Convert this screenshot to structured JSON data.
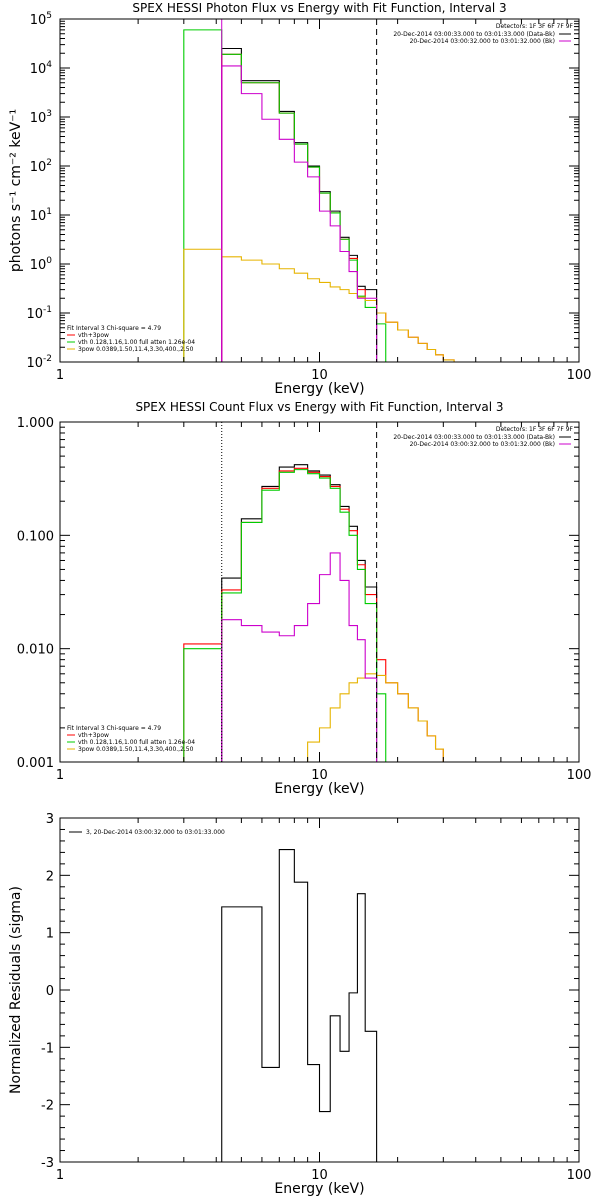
{
  "chart_data": [
    {
      "type": "line",
      "title": "SPEX HESSI Photon Flux vs Energy with Fit Function, Interval 3",
      "xlabel": "Energy (keV)",
      "ylabel": "photons s⁻¹ cm⁻² keV⁻¹",
      "xscale": "log",
      "yscale": "log",
      "xlim": [
        1,
        100
      ],
      "ylim": [
        0.01,
        100000
      ],
      "x_ticks": [
        "1",
        "10",
        "100"
      ],
      "y_ticks": [
        {
          "base": "10",
          "exp": "5"
        },
        {
          "base": "10",
          "exp": "4"
        },
        {
          "base": "10",
          "exp": "3"
        },
        {
          "base": "10",
          "exp": "2"
        },
        {
          "base": "10",
          "exp": "1"
        },
        {
          "base": "10",
          "exp": "0"
        },
        {
          "base": "10",
          "exp": "-1"
        },
        {
          "base": "10",
          "exp": "-2"
        }
      ],
      "detectors": "Detectors: 1F 3F 6F 7F 9F",
      "time_legend": [
        {
          "text": "20-Dec-2014 03:00:33.000 to 03:01:33.000 (Data-Bk)",
          "color": "#000000"
        },
        {
          "text": "20-Dec-2014 03:00:32.000 to 03:01:32.000 (Bk)",
          "color": "#cc00cc"
        }
      ],
      "fit_legend": [
        {
          "text": "Fit Interval 3   Chi-square = 4.79",
          "color": "#000000"
        },
        {
          "text": "vth+3pow",
          "color": "#ff0000"
        },
        {
          "text": "vth 0.128,1.16,1.00  full atten 1.26e-04",
          "color": "#00cc00"
        },
        {
          "text": "3pow 0.0389,1.50,11.4,3.30,400.,2.50",
          "color": "#e6b400"
        }
      ],
      "vlines": [
        {
          "x": 4.2,
          "style": "solid",
          "color": "#cc00cc"
        },
        {
          "x": 16.6,
          "style": "dashed",
          "color": "#000000"
        }
      ],
      "bin_edges": [
        3.0,
        4.2,
        5.0,
        6.0,
        7.0,
        8.0,
        9.0,
        10.0,
        11.0,
        12.0,
        13.0,
        14.0,
        15.0,
        16.6,
        18.0,
        20.0,
        22.0,
        24.0,
        26.0,
        28.0,
        30.0,
        33.0,
        36.0
      ],
      "series": [
        {
          "name": "",
          "color": "#000000",
          "values": [
            null,
            25000,
            5500,
            5500,
            1300,
            300,
            100,
            30,
            12,
            3.5,
            1.5,
            0.35,
            0.3,
            null,
            null,
            null,
            null,
            null,
            null,
            null,
            null,
            null
          ]
        },
        {
          "name": "",
          "color": "#ff0000",
          "values": [
            null,
            19000,
            5000,
            5000,
            1200,
            280,
            95,
            28,
            11,
            3.2,
            1.3,
            0.3,
            0.18,
            0.1,
            0.065,
            0.045,
            0.032,
            0.024,
            0.018,
            0.014,
            0.011,
            null
          ]
        },
        {
          "name": "",
          "color": "#00cc00",
          "values": [
            60000,
            19000,
            5000,
            5000,
            1200,
            280,
            95,
            28,
            11,
            3.2,
            1.2,
            0.22,
            0.13,
            0.06,
            null,
            null,
            null,
            null,
            null,
            null,
            null,
            null
          ]
        },
        {
          "name": "",
          "color": "#e6b400",
          "values": [
            2.0,
            1.4,
            1.2,
            1.0,
            0.8,
            0.65,
            0.5,
            0.42,
            0.34,
            0.3,
            0.25,
            0.21,
            0.18,
            0.1,
            0.065,
            0.045,
            0.032,
            0.024,
            0.018,
            0.014,
            0.011,
            null
          ]
        },
        {
          "name": "",
          "color": "#cc00cc",
          "values": [
            null,
            11000,
            3000,
            900,
            350,
            120,
            60,
            12,
            6,
            1.8,
            0.7,
            0.2,
            0.2,
            null,
            null,
            null,
            null,
            null,
            null,
            null,
            null,
            null
          ]
        }
      ]
    },
    {
      "type": "line",
      "title": "SPEX HESSI Count Flux vs Energy with Fit Function, Interval 3",
      "xlabel": "Energy (keV)",
      "ylabel": "",
      "xscale": "log",
      "yscale": "log",
      "xlim": [
        1,
        100
      ],
      "ylim": [
        0.001,
        1.0
      ],
      "x_ticks": [
        "1",
        "10",
        "100"
      ],
      "y_ticks": [
        "1.000",
        "0.100",
        "0.010",
        "0.001"
      ],
      "detectors": "Detectors: 1F 3F 6F 7F 9F",
      "time_legend": [
        {
          "text": "20-Dec-2014 03:00:33.000 to 03:01:33.000 (Data-Bk)",
          "color": "#000000"
        },
        {
          "text": "20-Dec-2014 03:00:32.000 to 03:01:32.000 (Bk)",
          "color": "#cc00cc"
        }
      ],
      "fit_legend": [
        {
          "text": "Fit Interval 3   Chi-square = 4.79",
          "color": "#000000"
        },
        {
          "text": "vth+3pow",
          "color": "#ff0000"
        },
        {
          "text": "vth 0.128,1.16,1.00  full atten 1.26e-04",
          "color": "#00cc00"
        },
        {
          "text": "3pow 0.0389,1.50,11.4,3.30,400.,2.50",
          "color": "#e6b400"
        }
      ],
      "vlines": [
        {
          "x": 4.2,
          "style": "dotted",
          "color": "#000000"
        },
        {
          "x": 16.6,
          "style": "dashed",
          "color": "#000000"
        }
      ],
      "bin_edges": [
        3.0,
        4.2,
        5.0,
        6.0,
        7.0,
        8.0,
        9.0,
        10.0,
        11.0,
        12.0,
        13.0,
        14.0,
        15.0,
        16.6,
        18.0,
        20.0,
        22.0,
        24.0,
        26.0,
        28.0,
        30.0,
        33.0,
        36.0
      ],
      "series": [
        {
          "name": "",
          "color": "#000000",
          "values": [
            null,
            0.042,
            0.14,
            0.27,
            0.4,
            0.42,
            0.37,
            0.34,
            0.28,
            0.18,
            0.12,
            0.06,
            0.035,
            null,
            null,
            null,
            null,
            null,
            null,
            null,
            null,
            null
          ]
        },
        {
          "name": "",
          "color": "#ff0000",
          "values": [
            0.011,
            0.033,
            0.13,
            0.26,
            0.37,
            0.39,
            0.36,
            0.33,
            0.27,
            0.17,
            0.11,
            0.055,
            0.03,
            0.008,
            0.005,
            0.004,
            0.003,
            0.0023,
            0.0017,
            0.0013,
            0.001,
            null
          ]
        },
        {
          "name": "",
          "color": "#00cc00",
          "values": [
            0.01,
            0.031,
            0.13,
            0.25,
            0.36,
            0.38,
            0.35,
            0.32,
            0.26,
            0.16,
            0.1,
            0.05,
            0.025,
            0.004,
            null,
            null,
            null,
            null,
            null,
            null,
            null,
            null
          ]
        },
        {
          "name": "",
          "color": "#e6b400",
          "values": [
            null,
            null,
            null,
            null,
            null,
            0.001,
            0.0015,
            0.002,
            0.003,
            0.004,
            0.005,
            0.0055,
            0.006,
            0.0058,
            0.005,
            0.004,
            0.003,
            0.0023,
            0.0017,
            0.0013,
            0.001,
            null
          ]
        },
        {
          "name": "",
          "color": "#cc00cc",
          "values": [
            null,
            0.018,
            0.016,
            0.014,
            0.013,
            0.016,
            0.025,
            0.045,
            0.07,
            0.04,
            0.016,
            0.012,
            0.0055,
            null,
            null,
            null,
            null,
            null,
            null,
            null,
            null,
            null
          ]
        }
      ]
    },
    {
      "type": "line",
      "title": "",
      "xlabel": "Energy (keV)",
      "ylabel": "Normalized Residuals (sigma)",
      "xscale": "log",
      "yscale": "linear",
      "xlim": [
        1,
        100
      ],
      "ylim": [
        -3,
        3
      ],
      "x_ticks": [
        "1",
        "10",
        "100"
      ],
      "y_ticks": [
        "3",
        "2",
        "1",
        "0",
        "-1",
        "-2",
        "-3"
      ],
      "legend_label": "3, 20-Dec-2014 03:00:32.000 to 03:01:33.000",
      "bin_edges": [
        4.2,
        5.0,
        6.0,
        7.0,
        8.0,
        9.0,
        10.0,
        11.0,
        12.0,
        13.0,
        14.0,
        15.0,
        16.6
      ],
      "series": [
        {
          "name": "",
          "color": "#000000",
          "values": [
            1.45,
            1.45,
            -1.35,
            2.45,
            1.88,
            -1.3,
            -2.12,
            -0.45,
            -1.07,
            -0.05,
            1.68,
            -0.72
          ]
        }
      ]
    }
  ]
}
